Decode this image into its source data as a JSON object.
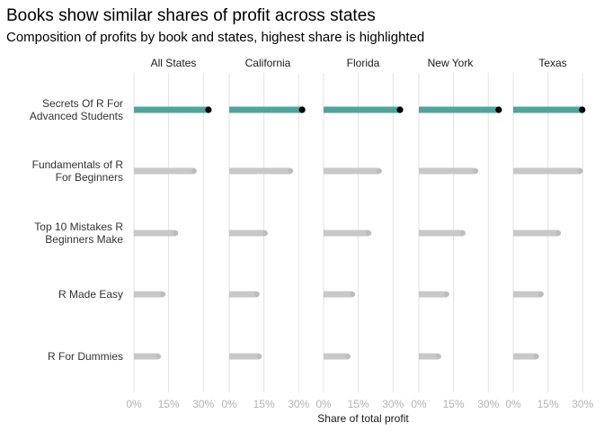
{
  "chart_data": {
    "type": "lollipop-bar",
    "title": "Books show similar shares of profit across states",
    "subtitle": "Composition of profits by book and states, highest share is highlighted",
    "xlabel": "Share of total profit",
    "ylabel": "",
    "xlim": [
      0,
      0.33
    ],
    "xticks": [
      0,
      0.15,
      0.3
    ],
    "xtick_labels": [
      "0%",
      "15%",
      "30%"
    ],
    "grid": "vertical-major",
    "facets": [
      "All States",
      "California",
      "Florida",
      "New York",
      "Texas"
    ],
    "categories": [
      "Secrets Of R For Advanced Students",
      "Fundamentals of R For Beginners",
      "Top 10 Mistakes R Beginners Make",
      "R Made Easy",
      "R For Dummies"
    ],
    "category_label_lines": [
      [
        "Secrets Of R For",
        "Advanced Students"
      ],
      [
        "Fundamentals of R",
        "For Beginners"
      ],
      [
        "Top 10 Mistakes R",
        "Beginners Make"
      ],
      [
        "R Made Easy"
      ],
      [
        "R For Dummies"
      ]
    ],
    "values": {
      "All States": [
        0.322,
        0.26,
        0.18,
        0.125,
        0.105
      ],
      "California": [
        0.315,
        0.265,
        0.155,
        0.12,
        0.13
      ],
      "Florida": [
        0.33,
        0.24,
        0.195,
        0.125,
        0.105
      ],
      "New York": [
        0.345,
        0.245,
        0.19,
        0.12,
        0.085
      ],
      "Texas": [
        0.298,
        0.29,
        0.195,
        0.12,
        0.1
      ]
    },
    "highlight_category": "Secrets Of R For Advanced Students",
    "colors": {
      "highlight": "#4fa59a",
      "normal": "#c8c8c8",
      "highlight_point": "#000000",
      "normal_point": "#bdbdbd",
      "grid": "#e3e3e3"
    }
  }
}
